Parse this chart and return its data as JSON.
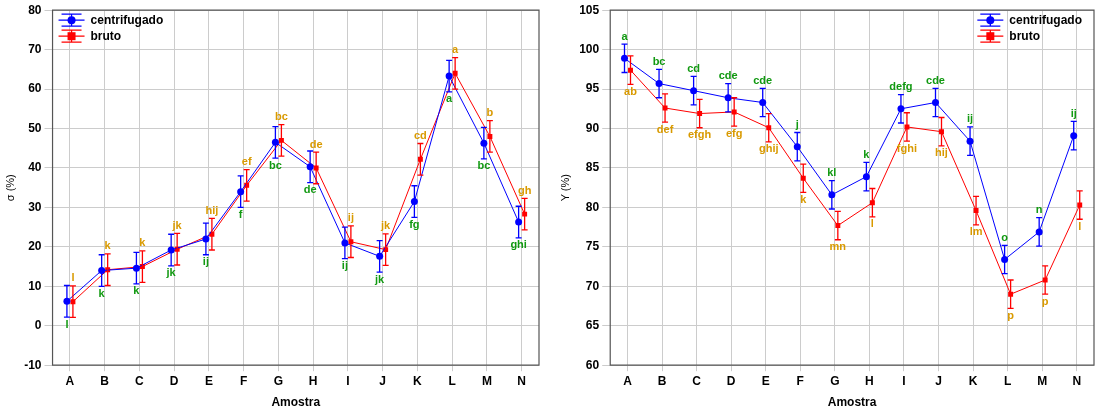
{
  "chart_data": [
    {
      "type": "line",
      "xlabel": "Amostra",
      "ylabel": "σ (%)",
      "categories": [
        "A",
        "B",
        "C",
        "D",
        "E",
        "F",
        "G",
        "H",
        "I",
        "J",
        "K",
        "L",
        "M",
        "N"
      ],
      "ylim": [
        -10,
        80
      ],
      "yticks": [
        -10,
        0,
        10,
        20,
        30,
        40,
        50,
        60,
        70,
        80
      ],
      "grid": true,
      "legend": "top left",
      "series": [
        {
          "name": "centrifugado",
          "color": "#0000ff",
          "marker": "circle",
          "values": [
            6.2,
            14,
            14.6,
            19.2,
            22,
            34,
            46.5,
            40.3,
            21,
            17.6,
            31.5,
            63.3,
            46.3,
            26.3
          ],
          "errors": [
            4,
            4,
            4,
            4,
            4,
            4,
            4,
            4,
            4,
            4,
            4,
            4,
            4,
            4
          ],
          "value_labels": [
            "l",
            "k",
            "k",
            "jk",
            "ij",
            "f",
            "bc",
            "de",
            "ij",
            "jk",
            "fg",
            "a",
            "bc",
            "ghi"
          ]
        },
        {
          "name": "bruto",
          "color": "#ff0000",
          "marker": "square",
          "values": [
            6.1,
            14.2,
            15,
            19.4,
            23.2,
            35.6,
            47,
            40,
            21.3,
            19.3,
            42.2,
            64,
            48,
            28.3
          ],
          "errors": [
            4,
            4,
            4,
            4,
            4,
            4,
            4,
            4,
            4,
            4,
            4,
            4,
            4,
            4
          ],
          "value_labels": [
            "l",
            "k",
            "k",
            "jk",
            "hij",
            "ef",
            "bc",
            "de",
            "ij",
            "jk",
            "cd",
            "a",
            "b",
            "gh"
          ]
        }
      ]
    },
    {
      "type": "line",
      "xlabel": "Amostra",
      "ylabel": "Y (%)",
      "categories": [
        "A",
        "B",
        "C",
        "D",
        "E",
        "F",
        "G",
        "H",
        "I",
        "J",
        "K",
        "L",
        "M",
        "N"
      ],
      "ylim": [
        60,
        105
      ],
      "yticks": [
        60,
        65,
        70,
        75,
        80,
        85,
        90,
        95,
        100,
        105
      ],
      "grid": true,
      "legend": "top right",
      "series": [
        {
          "name": "centrifugado",
          "color": "#0000ff",
          "marker": "circle",
          "values": [
            98.9,
            95.7,
            94.8,
            93.9,
            93.3,
            87.7,
            81.6,
            83.9,
            92.5,
            93.3,
            88.4,
            73.4,
            76.9,
            89.1
          ],
          "errors": [
            1.8,
            1.8,
            1.8,
            1.8,
            1.8,
            1.8,
            1.8,
            1.8,
            1.8,
            1.8,
            1.8,
            1.8,
            1.8,
            1.8
          ],
          "value_labels": [
            "a",
            "bc",
            "cd",
            "cde",
            "cde",
            "j",
            "kl",
            "k",
            "defg",
            "cde",
            "ij",
            "o",
            "n",
            "ij"
          ]
        },
        {
          "name": "bruto",
          "color": "#ff0000",
          "marker": "square",
          "values": [
            97.4,
            92.6,
            91.9,
            92.1,
            90.1,
            83.7,
            77.7,
            80.6,
            90.2,
            89.6,
            79.6,
            69.0,
            70.8,
            80.3
          ],
          "errors": [
            1.8,
            1.8,
            1.8,
            1.8,
            1.8,
            1.8,
            1.8,
            1.8,
            1.8,
            1.8,
            1.8,
            1.8,
            1.8,
            1.8
          ],
          "value_labels": [
            "ab",
            "def",
            "efgh",
            "efg",
            "ghij",
            "k",
            "mn",
            "l",
            "fghi",
            "hij",
            "lm",
            "p",
            "p",
            "l"
          ]
        }
      ]
    }
  ]
}
